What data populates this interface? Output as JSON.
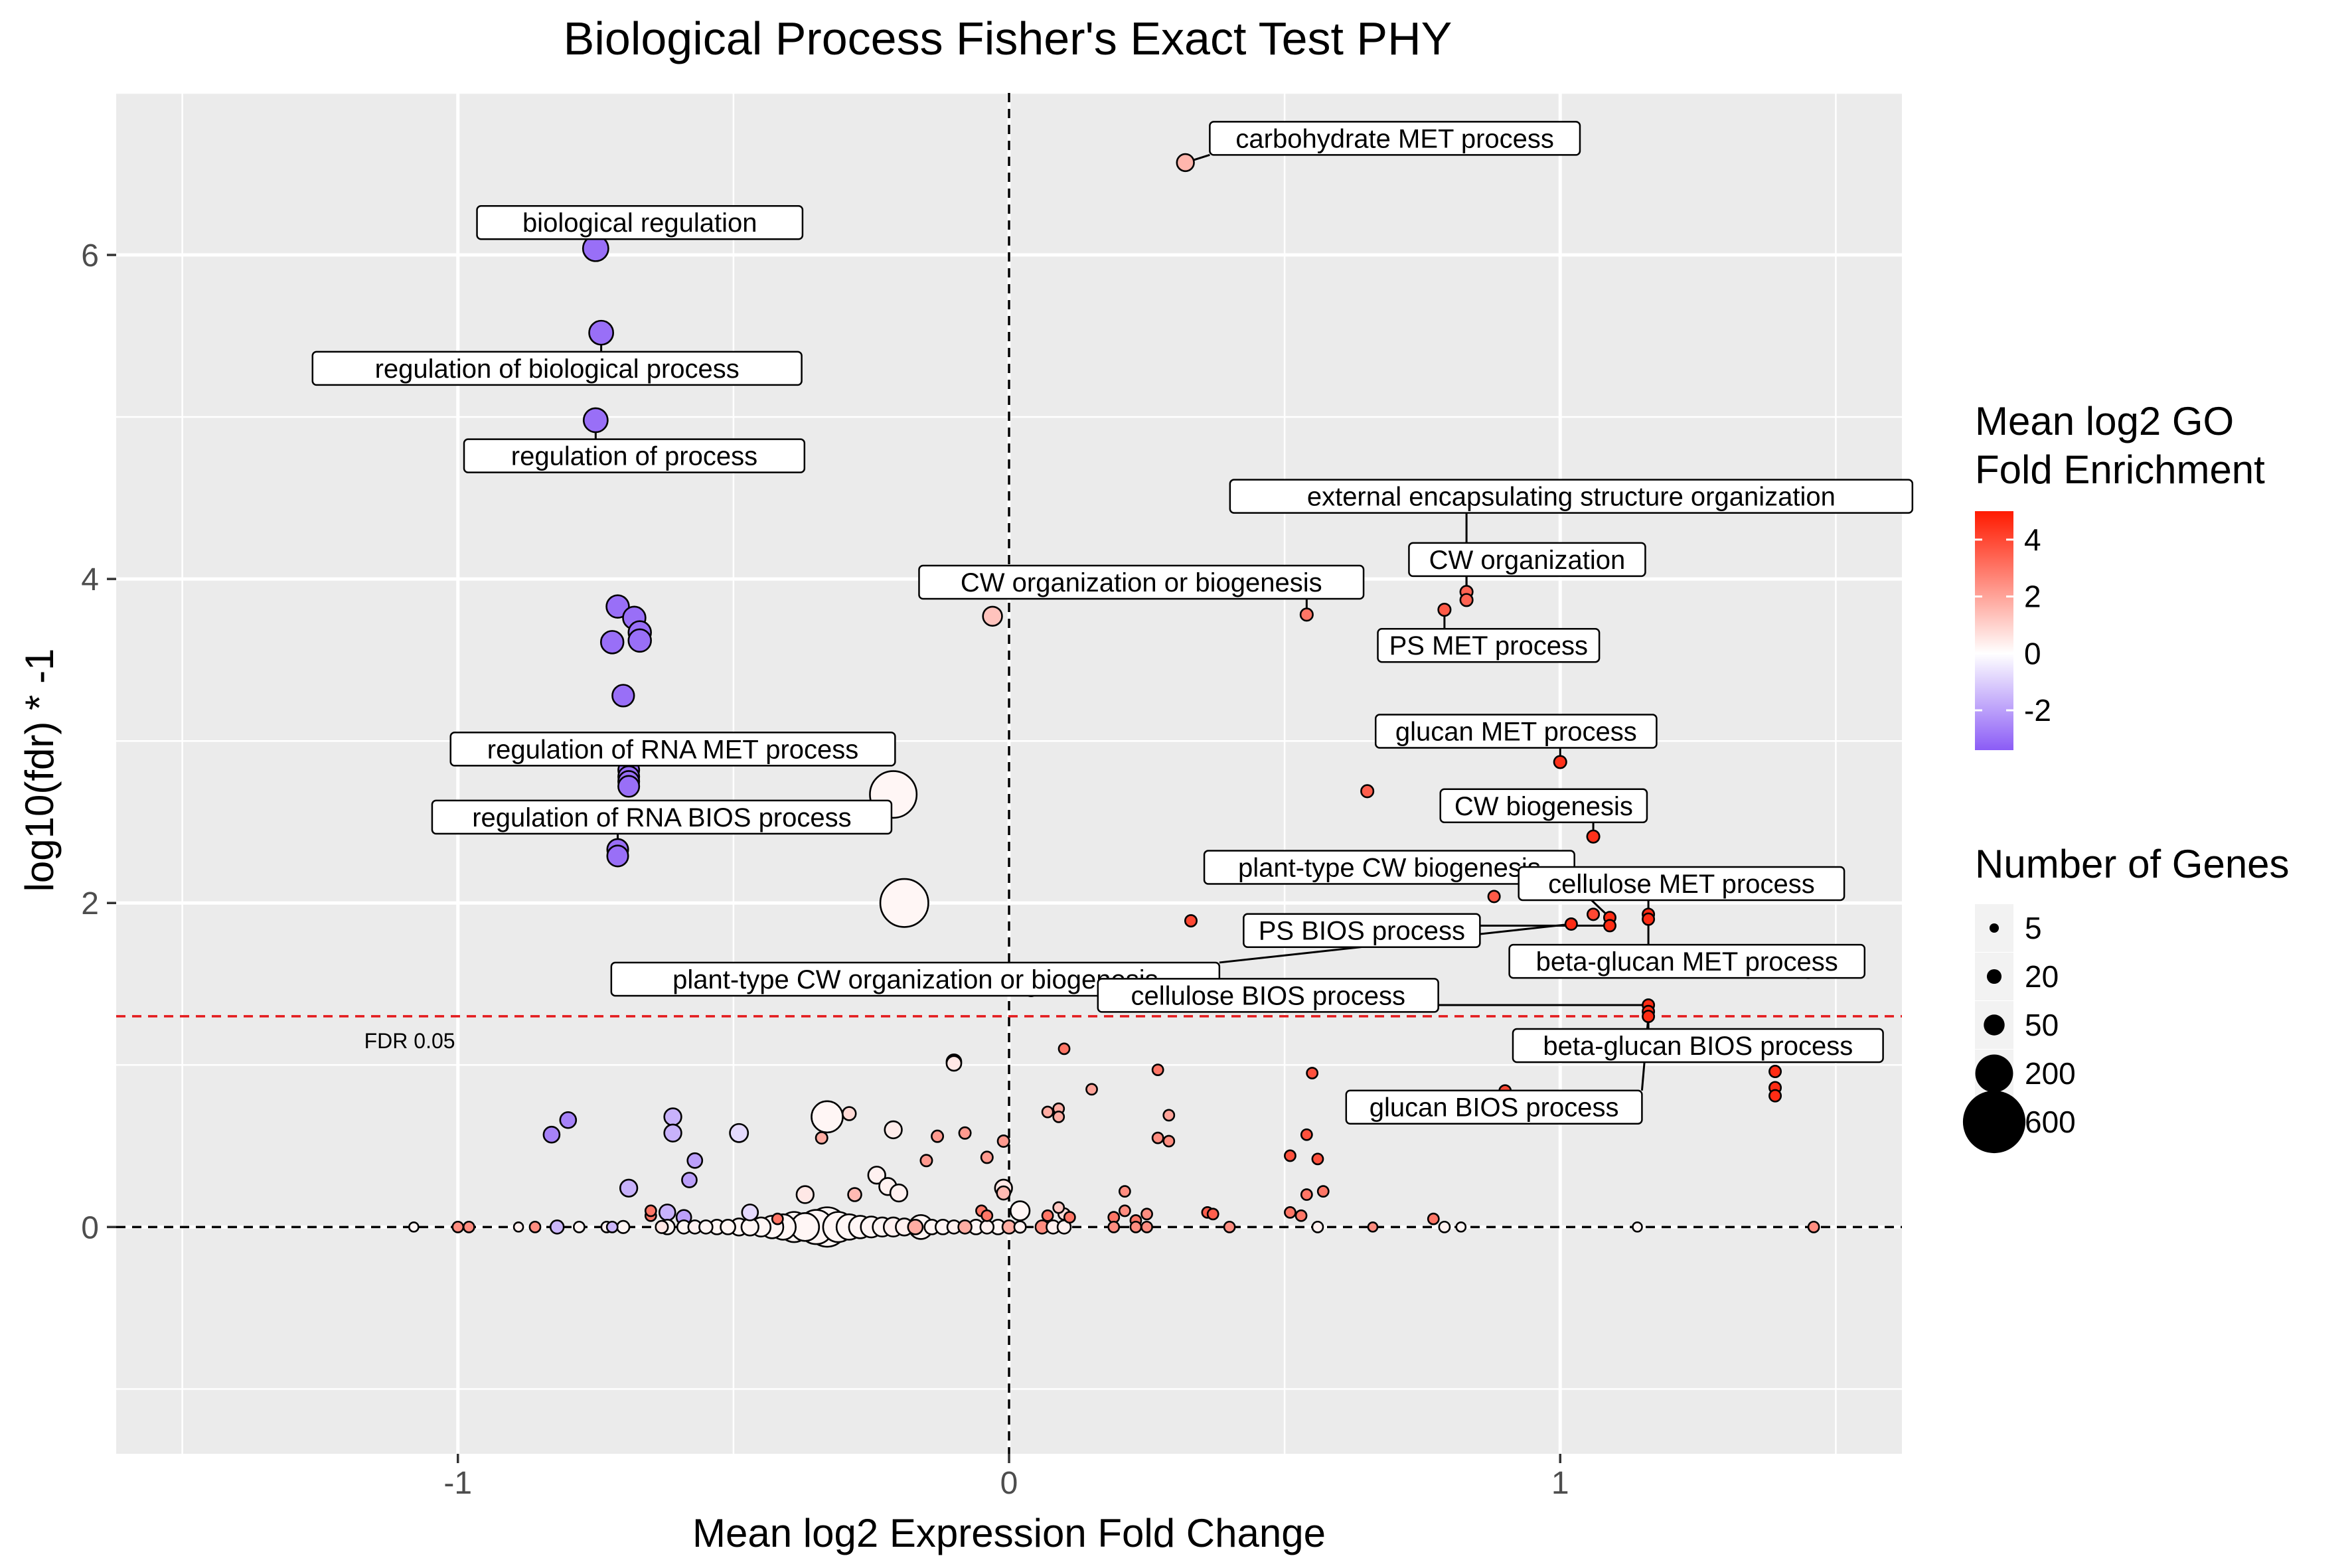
{
  "chart_data": {
    "type": "scatter",
    "title": "Biological Process Fisher's Exact Test PHY",
    "xlabel": "Mean log2 Expression Fold Change",
    "ylabel": "log10(fdr) * -1",
    "xlim": [
      -1.62,
      1.62
    ],
    "ylim": [
      -1.4,
      7.0
    ],
    "x_ticks": [
      -1,
      0,
      1
    ],
    "x_tick_labels": [
      "-1",
      "0",
      "1"
    ],
    "y_ticks": [
      0,
      2,
      4,
      6
    ],
    "y_tick_labels": [
      "0",
      "2",
      "4",
      "6"
    ],
    "grid": true,
    "reference_lines": {
      "vertical_x": 0,
      "horizontal_y": 0,
      "threshold_y": 1.301,
      "threshold_label": "FDR 0.05",
      "threshold_color": "#e41a1c"
    },
    "legend": {
      "placement": "right",
      "color_title_line1": "Mean log2 GO",
      "color_title_line2": "Fold Enrichment",
      "color_range": [
        -3.4,
        5.0
      ],
      "color_ticks": [
        4,
        2,
        0,
        -2
      ],
      "color_tick_labels": [
        "4",
        "2",
        "0",
        "-2"
      ],
      "colors": {
        "low": "#8b5cf6",
        "mid": "#ffffff",
        "high": "#ff1a00"
      },
      "size_title": "Number of Genes",
      "size_values": [
        5,
        20,
        50,
        200,
        600
      ],
      "size_labels": [
        "5",
        "20",
        "50",
        "200",
        "600"
      ]
    },
    "points": [
      {
        "x": 0.32,
        "y": 6.57,
        "n": 30,
        "c": 1.6,
        "label": "carbohydrate MET process",
        "lx": 0.7,
        "ly": 6.72
      },
      {
        "x": -0.75,
        "y": 6.04,
        "n": 80,
        "c": -3.0,
        "label": "biological regulation",
        "lx": -0.67,
        "ly": 6.2
      },
      {
        "x": -0.74,
        "y": 5.52,
        "n": 70,
        "c": -3.0,
        "label": "regulation of biological process",
        "lx": -0.82,
        "ly": 5.3
      },
      {
        "x": -0.75,
        "y": 4.98,
        "n": 70,
        "c": -3.0,
        "label": "regulation of  process",
        "lx": -0.68,
        "ly": 4.76
      },
      {
        "x": 0.83,
        "y": 3.92,
        "n": 12,
        "c": 3.4,
        "label": "external encapsulating structure organization",
        "lx": 1.02,
        "ly": 4.51
      },
      {
        "x": 0.83,
        "y": 3.87,
        "n": 12,
        "c": 3.4,
        "label": "CW organization",
        "lx": 0.94,
        "ly": 4.12
      },
      {
        "x": 0.79,
        "y": 3.81,
        "n": 12,
        "c": 3.6,
        "label": "PS MET process",
        "lx": 0.87,
        "ly": 3.59
      },
      {
        "x": 0.54,
        "y": 3.78,
        "n": 12,
        "c": 3.0,
        "label": "CW organization or biogenesis",
        "lx": 0.24,
        "ly": 3.98
      },
      {
        "x": -0.03,
        "y": 3.77,
        "n": 40,
        "c": 1.3
      },
      {
        "x": -0.71,
        "y": 3.83,
        "n": 60,
        "c": -3.0
      },
      {
        "x": -0.68,
        "y": 3.76,
        "n": 60,
        "c": -3.0
      },
      {
        "x": -0.67,
        "y": 3.67,
        "n": 60,
        "c": -3.0
      },
      {
        "x": -0.67,
        "y": 3.62,
        "n": 60,
        "c": -3.0
      },
      {
        "x": -0.72,
        "y": 3.61,
        "n": 60,
        "c": -3.0
      },
      {
        "x": -0.7,
        "y": 3.28,
        "n": 55,
        "c": -3.0
      },
      {
        "x": 1.0,
        "y": 2.87,
        "n": 12,
        "c": 4.5,
        "label": "glucan MET process",
        "lx": 0.92,
        "ly": 3.06
      },
      {
        "x": -0.69,
        "y": 2.82,
        "n": 50,
        "c": -3.0,
        "label": "regulation of RNA MET process",
        "lx": -0.61,
        "ly": 2.95
      },
      {
        "x": -0.69,
        "y": 2.78,
        "n": 50,
        "c": -3.0
      },
      {
        "x": -0.69,
        "y": 2.75,
        "n": 50,
        "c": -3.0
      },
      {
        "x": -0.69,
        "y": 2.72,
        "n": 50,
        "c": -3.0
      },
      {
        "x": -0.21,
        "y": 2.67,
        "n": 320,
        "c": 0.2
      },
      {
        "x": 0.65,
        "y": 2.69,
        "n": 12,
        "c": 3.5
      },
      {
        "x": 1.06,
        "y": 2.41,
        "n": 12,
        "c": 4.5,
        "label": "CW biogenesis",
        "lx": 0.97,
        "ly": 2.6
      },
      {
        "x": -0.71,
        "y": 2.33,
        "n": 50,
        "c": -3.0,
        "label": "regulation of RNA BIOS process",
        "lx": -0.63,
        "ly": 2.53
      },
      {
        "x": -0.71,
        "y": 2.29,
        "n": 50,
        "c": -3.0
      },
      {
        "x": -0.19,
        "y": 2.0,
        "n": 340,
        "c": 0.2
      },
      {
        "x": 0.88,
        "y": 2.04,
        "n": 10,
        "c": 3.6
      },
      {
        "x": 1.09,
        "y": 1.91,
        "n": 10,
        "c": 4.6,
        "label": "plant-type CW biogenesis",
        "lx": 0.69,
        "ly": 2.22
      },
      {
        "x": 1.16,
        "y": 1.93,
        "n": 10,
        "c": 4.6,
        "label": "cellulose MET process",
        "lx": 1.22,
        "ly": 2.12
      },
      {
        "x": 1.16,
        "y": 1.9,
        "n": 10,
        "c": 4.6,
        "label": "beta-glucan MET process",
        "lx": 1.23,
        "ly": 1.64
      },
      {
        "x": 1.09,
        "y": 1.86,
        "n": 10,
        "c": 4.6,
        "label": "PS BIOS process",
        "lx": 0.64,
        "ly": 1.83
      },
      {
        "x": 1.06,
        "y": 1.93,
        "n": 10,
        "c": 4.0
      },
      {
        "x": 1.02,
        "y": 1.87,
        "n": 10,
        "c": 4.6,
        "label": "plant-type CW organization or biogenesis",
        "lx": -0.17,
        "ly": 1.53
      },
      {
        "x": 0.33,
        "y": 1.89,
        "n": 10,
        "c": 4.0
      },
      {
        "x": 1.16,
        "y": 1.37,
        "n": 10,
        "c": 4.6,
        "label": "cellulose BIOS process",
        "lx": 0.47,
        "ly": 1.43
      },
      {
        "x": 1.16,
        "y": 1.33,
        "n": 10,
        "c": 4.6,
        "label": "beta-glucan BIOS process",
        "lx": 1.25,
        "ly": 1.12
      },
      {
        "x": 1.16,
        "y": 1.3,
        "n": 10,
        "c": 4.6,
        "label": "glucan BIOS process",
        "lx": 0.88,
        "ly": 0.74
      },
      {
        "x": 0.04,
        "y": 1.46,
        "n": 10,
        "c": 2.8
      },
      {
        "x": 0.31,
        "y": 1.4,
        "n": 10,
        "c": 2.8
      },
      {
        "x": 1.45,
        "y": 1.57,
        "n": 8,
        "c": 3.5
      },
      {
        "x": 1.39,
        "y": 0.96,
        "n": 10,
        "c": 4.6
      },
      {
        "x": 1.39,
        "y": 0.86,
        "n": 10,
        "c": 4.6
      },
      {
        "x": 1.39,
        "y": 0.81,
        "n": 10,
        "c": 4.6
      },
      {
        "x": 0.9,
        "y": 0.84,
        "n": 10,
        "c": 4.0
      },
      {
        "x": -0.1,
        "y": 1.02,
        "n": 20,
        "c": 0.5
      },
      {
        "x": -0.1,
        "y": 1.01,
        "n": 20,
        "c": 0.5
      },
      {
        "x": 0.1,
        "y": 1.1,
        "n": 8,
        "c": 3.0
      },
      {
        "x": 0.27,
        "y": 0.97,
        "n": 8,
        "c": 3.0
      },
      {
        "x": 0.55,
        "y": 0.95,
        "n": 8,
        "c": 3.8
      },
      {
        "x": 0.15,
        "y": 0.85,
        "n": 8,
        "c": 2.0
      },
      {
        "x": 0.07,
        "y": 0.71,
        "n": 8,
        "c": 1.8
      },
      {
        "x": 0.09,
        "y": 0.73,
        "n": 8,
        "c": 1.8
      },
      {
        "x": 0.09,
        "y": 0.68,
        "n": 8,
        "c": 1.8
      },
      {
        "x": 0.29,
        "y": 0.69,
        "n": 8,
        "c": 2.0
      },
      {
        "x": 0.27,
        "y": 0.55,
        "n": 8,
        "c": 2.5
      },
      {
        "x": 0.29,
        "y": 0.53,
        "n": 8,
        "c": 2.5
      },
      {
        "x": 0.54,
        "y": 0.57,
        "n": 8,
        "c": 3.8
      },
      {
        "x": 0.51,
        "y": 0.44,
        "n": 8,
        "c": 3.8
      },
      {
        "x": 0.56,
        "y": 0.42,
        "n": 8,
        "c": 3.8
      },
      {
        "x": 0.57,
        "y": 0.22,
        "n": 8,
        "c": 3.0
      },
      {
        "x": 0.54,
        "y": 0.2,
        "n": 8,
        "c": 3.0
      },
      {
        "x": 0.36,
        "y": 0.09,
        "n": 8,
        "c": 3.5
      },
      {
        "x": 0.37,
        "y": 0.08,
        "n": 8,
        "c": 3.5
      },
      {
        "x": 0.21,
        "y": 0.22,
        "n": 8,
        "c": 2.5
      },
      {
        "x": 0.21,
        "y": 0.1,
        "n": 8,
        "c": 2.5
      },
      {
        "x": 0.25,
        "y": 0.08,
        "n": 8,
        "c": 2.5
      },
      {
        "x": 0.51,
        "y": 0.09,
        "n": 8,
        "c": 3.0
      },
      {
        "x": 0.53,
        "y": 0.07,
        "n": 8,
        "c": 3.0
      },
      {
        "x": 0.77,
        "y": 0.05,
        "n": 8,
        "c": 3.0
      },
      {
        "x": -0.33,
        "y": 0.68,
        "n": 130,
        "c": 0.2
      },
      {
        "x": -0.29,
        "y": 0.7,
        "n": 15,
        "c": 0.8
      },
      {
        "x": -0.34,
        "y": 0.55,
        "n": 10,
        "c": 1.8
      },
      {
        "x": -0.21,
        "y": 0.6,
        "n": 30,
        "c": 0.4
      },
      {
        "x": -0.13,
        "y": 0.56,
        "n": 10,
        "c": 2.2
      },
      {
        "x": -0.08,
        "y": 0.58,
        "n": 10,
        "c": 2.2
      },
      {
        "x": -0.01,
        "y": 0.53,
        "n": 10,
        "c": 2.2
      },
      {
        "x": -0.04,
        "y": 0.43,
        "n": 10,
        "c": 2.2
      },
      {
        "x": -0.15,
        "y": 0.41,
        "n": 10,
        "c": 2.2
      },
      {
        "x": -0.24,
        "y": 0.32,
        "n": 30,
        "c": 0.3
      },
      {
        "x": -0.22,
        "y": 0.25,
        "n": 30,
        "c": 0.3
      },
      {
        "x": -0.2,
        "y": 0.21,
        "n": 30,
        "c": 0.3
      },
      {
        "x": -0.28,
        "y": 0.2,
        "n": 15,
        "c": 1.5
      },
      {
        "x": -0.37,
        "y": 0.2,
        "n": 30,
        "c": 0.5
      },
      {
        "x": -0.01,
        "y": 0.24,
        "n": 30,
        "c": 0.5
      },
      {
        "x": -0.01,
        "y": 0.21,
        "n": 15,
        "c": 1.5
      },
      {
        "x": -0.83,
        "y": 0.57,
        "n": 25,
        "c": -2.6
      },
      {
        "x": -0.8,
        "y": 0.66,
        "n": 25,
        "c": -2.6
      },
      {
        "x": -0.61,
        "y": 0.68,
        "n": 30,
        "c": -1.6
      },
      {
        "x": -0.61,
        "y": 0.58,
        "n": 30,
        "c": -1.6
      },
      {
        "x": -0.49,
        "y": 0.58,
        "n": 35,
        "c": -0.8
      },
      {
        "x": -0.57,
        "y": 0.41,
        "n": 20,
        "c": -2.0
      },
      {
        "x": -0.58,
        "y": 0.29,
        "n": 20,
        "c": -2.0
      },
      {
        "x": -0.69,
        "y": 0.24,
        "n": 30,
        "c": -1.6
      },
      {
        "x": -0.62,
        "y": 0.09,
        "n": 25,
        "c": -1.6
      },
      {
        "x": -0.59,
        "y": 0.06,
        "n": 20,
        "c": -2.0
      },
      {
        "x": -0.47,
        "y": 0.09,
        "n": 25,
        "c": -0.8
      },
      {
        "x": 0.02,
        "y": 0.1,
        "n": 40,
        "c": 0.2
      },
      {
        "x": 0.09,
        "y": 0.12,
        "n": 8,
        "c": 1.2
      },
      {
        "x": 0.1,
        "y": 0.08,
        "n": 10,
        "c": 0.8
      },
      {
        "x": -0.65,
        "y": 0.07,
        "n": 8,
        "c": 3.0
      },
      {
        "x": -0.65,
        "y": 0.1,
        "n": 8,
        "c": 3.0
      },
      {
        "x": -0.42,
        "y": 0.05,
        "n": 8,
        "c": 3.0
      },
      {
        "x": -0.05,
        "y": 0.1,
        "n": 8,
        "c": 3.0
      },
      {
        "x": -0.04,
        "y": 0.07,
        "n": 8,
        "c": 3.0
      },
      {
        "x": 0.07,
        "y": 0.07,
        "n": 8,
        "c": 3.0
      },
      {
        "x": 0.11,
        "y": 0.06,
        "n": 8,
        "c": 3.0
      },
      {
        "x": 0.19,
        "y": 0.06,
        "n": 8,
        "c": 3.0
      },
      {
        "x": 0.23,
        "y": 0.04,
        "n": 8,
        "c": 3.0
      },
      {
        "x": -1.08,
        "y": 0,
        "n": 5,
        "c": 0.2
      },
      {
        "x": -1.0,
        "y": 0,
        "n": 8,
        "c": 2.5
      },
      {
        "x": -0.98,
        "y": 0,
        "n": 8,
        "c": 2.5
      },
      {
        "x": -0.89,
        "y": 0,
        "n": 5,
        "c": 0.3
      },
      {
        "x": -0.86,
        "y": 0,
        "n": 8,
        "c": 2.5
      },
      {
        "x": -0.82,
        "y": 0,
        "n": 15,
        "c": -1.5
      },
      {
        "x": -0.78,
        "y": 0,
        "n": 8,
        "c": 0.2
      },
      {
        "x": -0.73,
        "y": 0,
        "n": 8,
        "c": 0.3
      },
      {
        "x": -0.72,
        "y": 0,
        "n": 8,
        "c": -1.5
      },
      {
        "x": -0.7,
        "y": 0,
        "n": 12,
        "c": 0.2
      },
      {
        "x": -0.63,
        "y": 0,
        "n": 12,
        "c": 0.5
      },
      {
        "x": -0.62,
        "y": 0,
        "n": 20,
        "c": 0.2
      },
      {
        "x": -0.59,
        "y": 0,
        "n": 15,
        "c": 0.2
      },
      {
        "x": -0.57,
        "y": 0,
        "n": 15,
        "c": 0.3
      },
      {
        "x": -0.55,
        "y": 0,
        "n": 15,
        "c": 0.2
      },
      {
        "x": -0.53,
        "y": 0,
        "n": 20,
        "c": 0.2
      },
      {
        "x": -0.51,
        "y": 0,
        "n": 20,
        "c": 0.2
      },
      {
        "x": -0.49,
        "y": 0,
        "n": 30,
        "c": 0.2
      },
      {
        "x": -0.47,
        "y": 0,
        "n": 30,
        "c": 0.2
      },
      {
        "x": -0.45,
        "y": 0,
        "n": 40,
        "c": 0.2
      },
      {
        "x": -0.43,
        "y": 0,
        "n": 60,
        "c": 0.2
      },
      {
        "x": -0.41,
        "y": 0,
        "n": 80,
        "c": 0.2
      },
      {
        "x": -0.39,
        "y": 0,
        "n": 120,
        "c": 0.2
      },
      {
        "x": -0.37,
        "y": 0,
        "n": 100,
        "c": 0.2
      },
      {
        "x": -0.35,
        "y": 0,
        "n": 160,
        "c": 0.2
      },
      {
        "x": -0.33,
        "y": 0,
        "n": 220,
        "c": 0.2
      },
      {
        "x": -0.31,
        "y": 0,
        "n": 120,
        "c": 0.2
      },
      {
        "x": -0.29,
        "y": 0,
        "n": 80,
        "c": 0.2
      },
      {
        "x": -0.27,
        "y": 0,
        "n": 60,
        "c": 0.2
      },
      {
        "x": -0.25,
        "y": 0,
        "n": 50,
        "c": 0.2
      },
      {
        "x": -0.23,
        "y": 0,
        "n": 40,
        "c": 0.2
      },
      {
        "x": -0.21,
        "y": 0,
        "n": 40,
        "c": 0.3
      },
      {
        "x": -0.19,
        "y": 0,
        "n": 30,
        "c": 0.3
      },
      {
        "x": -0.17,
        "y": 0,
        "n": 20,
        "c": 1.8
      },
      {
        "x": -0.16,
        "y": 0,
        "n": 70,
        "c": 0.2
      },
      {
        "x": -0.14,
        "y": 0,
        "n": 20,
        "c": 0.2
      },
      {
        "x": -0.12,
        "y": 0,
        "n": 20,
        "c": 0.2
      },
      {
        "x": -0.1,
        "y": 0,
        "n": 15,
        "c": 0.3
      },
      {
        "x": -0.08,
        "y": 0,
        "n": 15,
        "c": 1.8
      },
      {
        "x": -0.06,
        "y": 0,
        "n": 20,
        "c": 0.2
      },
      {
        "x": -0.04,
        "y": 0,
        "n": 15,
        "c": 0.3
      },
      {
        "x": -0.02,
        "y": 0,
        "n": 20,
        "c": 0.2
      },
      {
        "x": 0.0,
        "y": 0,
        "n": 15,
        "c": 1.8
      },
      {
        "x": 0.02,
        "y": 0,
        "n": 10,
        "c": 0.3
      },
      {
        "x": 0.06,
        "y": 0,
        "n": 15,
        "c": 2.5
      },
      {
        "x": 0.08,
        "y": 0,
        "n": 15,
        "c": 0.3
      },
      {
        "x": 0.1,
        "y": 0,
        "n": 15,
        "c": 0.3
      },
      {
        "x": 0.19,
        "y": 0,
        "n": 8,
        "c": 2.5
      },
      {
        "x": 0.23,
        "y": 0,
        "n": 8,
        "c": 2.5
      },
      {
        "x": 0.25,
        "y": 0,
        "n": 8,
        "c": 2.5
      },
      {
        "x": 0.4,
        "y": 0,
        "n": 8,
        "c": 2.5
      },
      {
        "x": 0.56,
        "y": 0,
        "n": 8,
        "c": 0.3
      },
      {
        "x": 0.66,
        "y": 0,
        "n": 5,
        "c": 2.5
      },
      {
        "x": 0.79,
        "y": 0,
        "n": 8,
        "c": 0.3
      },
      {
        "x": 0.82,
        "y": 0,
        "n": 5,
        "c": 0.2
      },
      {
        "x": 1.14,
        "y": 0,
        "n": 5,
        "c": 0.2
      },
      {
        "x": 1.46,
        "y": 0,
        "n": 8,
        "c": 2.5
      }
    ]
  }
}
